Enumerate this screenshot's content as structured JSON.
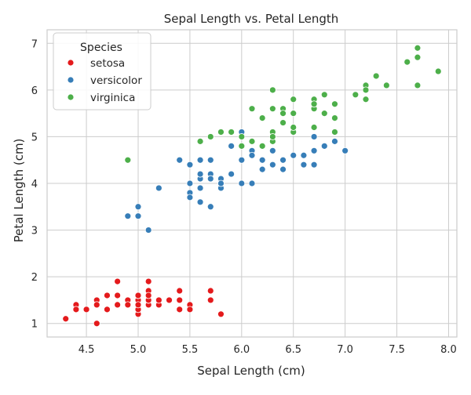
{
  "chart_data": {
    "type": "scatter",
    "title": "Sepal Length vs. Petal Length",
    "xlabel": "Sepal Length (cm)",
    "ylabel": "Petal Length (cm)",
    "xlim": [
      4.12,
      8.08
    ],
    "ylim": [
      0.71,
      7.29
    ],
    "xticks": [
      "4.5",
      "5.0",
      "5.5",
      "6.0",
      "6.5",
      "7.0",
      "7.5",
      "8.0"
    ],
    "yticks": [
      "1",
      "2",
      "3",
      "4",
      "5",
      "6",
      "7"
    ],
    "grid": true,
    "legend": {
      "title": "Species",
      "placement": "top-left"
    },
    "series": [
      {
        "name": "setosa",
        "color": "#e41a1c",
        "x": [
          5.1,
          4.9,
          4.7,
          4.6,
          5.0,
          5.4,
          4.6,
          5.0,
          4.4,
          4.9,
          5.4,
          4.8,
          4.8,
          4.3,
          5.8,
          5.7,
          5.4,
          5.1,
          5.7,
          5.1,
          5.4,
          5.1,
          4.6,
          5.1,
          4.8,
          5.0,
          5.0,
          5.2,
          5.2,
          4.7,
          4.8,
          5.4,
          5.2,
          5.5,
          4.9,
          5.0,
          5.5,
          4.9,
          4.4,
          5.1,
          5.0,
          4.5,
          4.4,
          5.0,
          5.1,
          4.8,
          5.1,
          4.6,
          5.3,
          5.0
        ],
        "y": [
          1.4,
          1.4,
          1.3,
          1.5,
          1.4,
          1.7,
          1.4,
          1.5,
          1.4,
          1.5,
          1.5,
          1.6,
          1.4,
          1.1,
          1.2,
          1.5,
          1.3,
          1.4,
          1.7,
          1.5,
          1.7,
          1.5,
          1.0,
          1.7,
          1.9,
          1.6,
          1.6,
          1.5,
          1.4,
          1.6,
          1.6,
          1.5,
          1.5,
          1.4,
          1.5,
          1.2,
          1.3,
          1.4,
          1.3,
          1.5,
          1.3,
          1.3,
          1.3,
          1.6,
          1.9,
          1.4,
          1.6,
          1.4,
          1.5,
          1.4
        ]
      },
      {
        "name": "versicolor",
        "color": "#377eb8",
        "x": [
          7.0,
          6.4,
          6.9,
          5.5,
          6.5,
          5.7,
          6.3,
          4.9,
          6.6,
          5.2,
          5.0,
          5.9,
          6.0,
          6.1,
          5.6,
          6.7,
          5.6,
          5.8,
          6.2,
          5.6,
          5.9,
          6.1,
          6.3,
          6.1,
          6.4,
          6.6,
          6.8,
          6.7,
          6.0,
          5.7,
          5.5,
          5.5,
          5.8,
          6.0,
          5.4,
          6.0,
          6.7,
          6.3,
          5.6,
          5.5,
          5.5,
          6.1,
          5.8,
          5.0,
          5.6,
          5.7,
          5.7,
          6.2,
          5.1,
          5.7
        ],
        "y": [
          4.7,
          4.5,
          4.9,
          4.0,
          4.6,
          4.5,
          4.7,
          3.3,
          4.6,
          3.9,
          3.5,
          4.2,
          4.0,
          4.7,
          3.6,
          4.4,
          4.5,
          4.1,
          4.5,
          3.9,
          4.8,
          4.0,
          4.9,
          4.7,
          4.3,
          4.4,
          4.8,
          5.0,
          4.5,
          3.5,
          3.8,
          3.7,
          3.9,
          5.1,
          4.5,
          4.5,
          4.7,
          4.4,
          4.1,
          4.0,
          4.4,
          4.6,
          4.0,
          3.3,
          4.2,
          4.2,
          4.2,
          4.3,
          3.0,
          4.1
        ]
      },
      {
        "name": "virginica",
        "color": "#4daf4a",
        "x": [
          6.3,
          5.8,
          7.1,
          6.3,
          6.5,
          7.6,
          4.9,
          7.3,
          6.7,
          7.2,
          6.5,
          6.4,
          6.8,
          5.7,
          5.8,
          6.4,
          6.5,
          7.7,
          7.7,
          6.0,
          6.9,
          5.6,
          7.7,
          6.3,
          6.7,
          7.2,
          6.2,
          6.1,
          6.4,
          7.2,
          7.4,
          7.9,
          6.4,
          6.3,
          6.1,
          7.7,
          6.3,
          6.4,
          6.0,
          6.9,
          6.7,
          6.9,
          5.8,
          6.8,
          6.7,
          6.7,
          6.3,
          6.5,
          6.2,
          5.9
        ],
        "y": [
          6.0,
          5.1,
          5.9,
          5.6,
          5.8,
          6.6,
          4.5,
          6.3,
          5.8,
          6.1,
          5.1,
          5.3,
          5.5,
          5.0,
          5.1,
          5.3,
          5.5,
          6.7,
          6.9,
          5.0,
          5.7,
          4.9,
          6.7,
          4.9,
          5.7,
          6.0,
          4.8,
          4.9,
          5.6,
          5.8,
          6.1,
          6.4,
          5.6,
          5.1,
          5.6,
          6.1,
          5.6,
          5.5,
          4.8,
          5.4,
          5.6,
          5.1,
          5.1,
          5.9,
          5.7,
          5.2,
          5.0,
          5.2,
          5.4,
          5.1
        ]
      }
    ]
  }
}
